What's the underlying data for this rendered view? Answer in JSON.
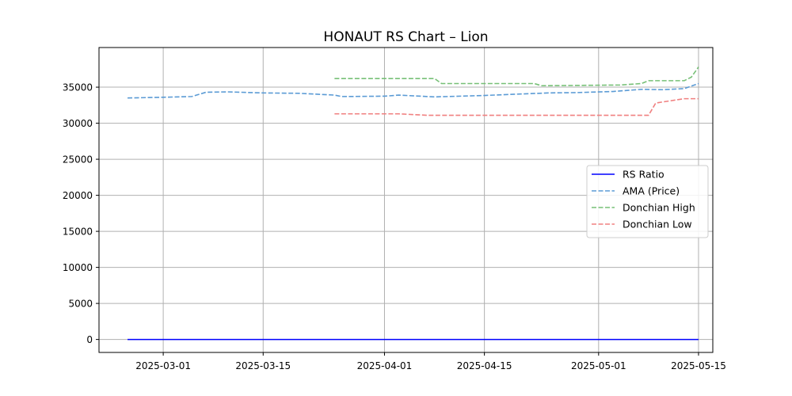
{
  "chart_data": {
    "type": "line",
    "title": "HONAUT RS Chart – Lion",
    "xlabel": "",
    "ylabel": "",
    "xlim": [
      "2025-02-20",
      "2025-05-17"
    ],
    "ylim": [
      -1800,
      40500
    ],
    "grid": true,
    "legend_position": "right",
    "x_ticks": [
      "2025-03-01",
      "2025-03-15",
      "2025-04-01",
      "2025-04-15",
      "2025-05-01",
      "2025-05-15"
    ],
    "y_ticks": [
      0,
      5000,
      10000,
      15000,
      20000,
      25000,
      30000,
      35000
    ],
    "series": [
      {
        "name": "RS Ratio",
        "color": "#0000ff",
        "style": "solid",
        "points": [
          [
            "2025-02-24",
            0
          ],
          [
            "2025-05-15",
            0
          ]
        ]
      },
      {
        "name": "AMA (Price)",
        "color": "#5b9bd5",
        "style": "dashed",
        "points": [
          [
            "2025-02-24",
            33500
          ],
          [
            "2025-03-01",
            33600
          ],
          [
            "2025-03-05",
            33700
          ],
          [
            "2025-03-07",
            34300
          ],
          [
            "2025-03-10",
            34350
          ],
          [
            "2025-03-15",
            34200
          ],
          [
            "2025-03-20",
            34150
          ],
          [
            "2025-03-25",
            33900
          ],
          [
            "2025-03-26",
            33700
          ],
          [
            "2025-04-01",
            33750
          ],
          [
            "2025-04-03",
            33900
          ],
          [
            "2025-04-08",
            33650
          ],
          [
            "2025-04-15",
            33850
          ],
          [
            "2025-04-20",
            34050
          ],
          [
            "2025-04-24",
            34200
          ],
          [
            "2025-04-28",
            34250
          ],
          [
            "2025-05-03",
            34400
          ],
          [
            "2025-05-07",
            34700
          ],
          [
            "2025-05-10",
            34650
          ],
          [
            "2025-05-13",
            34800
          ],
          [
            "2025-05-15",
            35500
          ]
        ]
      },
      {
        "name": "Donchian High",
        "color": "#77c077",
        "style": "dashed",
        "points": [
          [
            "2025-03-25",
            36200
          ],
          [
            "2025-04-08",
            36200
          ],
          [
            "2025-04-09",
            35500
          ],
          [
            "2025-04-22",
            35500
          ],
          [
            "2025-04-23",
            35200
          ],
          [
            "2025-05-04",
            35300
          ],
          [
            "2025-05-07",
            35500
          ],
          [
            "2025-05-08",
            35900
          ],
          [
            "2025-05-13",
            35900
          ],
          [
            "2025-05-14",
            36400
          ],
          [
            "2025-05-15",
            37800
          ]
        ]
      },
      {
        "name": "Donchian Low",
        "color": "#f08080",
        "style": "dashed",
        "points": [
          [
            "2025-03-25",
            31300
          ],
          [
            "2025-04-03",
            31300
          ],
          [
            "2025-04-07",
            31100
          ],
          [
            "2025-05-07",
            31100
          ],
          [
            "2025-05-08",
            31100
          ],
          [
            "2025-05-09",
            32800
          ],
          [
            "2025-05-11",
            33100
          ],
          [
            "2025-05-13",
            33400
          ],
          [
            "2025-05-15",
            33400
          ]
        ]
      }
    ]
  }
}
